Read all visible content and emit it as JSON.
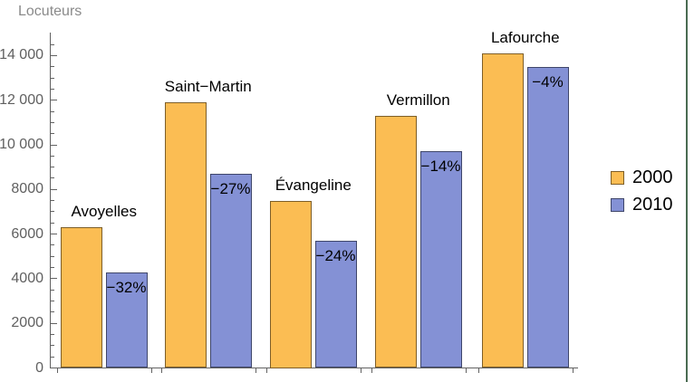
{
  "chart_data": {
    "type": "bar",
    "title": "",
    "ylabel": "Locuteurs",
    "xlabel": "",
    "categories": [
      "Avoyelles",
      "Saint−Martin",
      "Évangeline",
      "Vermillon",
      "Lafourche"
    ],
    "series": [
      {
        "name": "2000",
        "values": [
          6300,
          11900,
          7500,
          11300,
          14100
        ],
        "color": "#fbbd53",
        "edge_color": "#7d5e28"
      },
      {
        "name": "2010",
        "values": [
          4300,
          8700,
          5700,
          9700,
          13500
        ],
        "color": "#8491d5",
        "edge_color": "#3f466a"
      }
    ],
    "change_labels": [
      "−32%",
      "−27%",
      "−24%",
      "−14%",
      "−4%"
    ],
    "y_ticks": [
      {
        "value": 0,
        "label": "0"
      },
      {
        "value": 2000,
        "label": "2000"
      },
      {
        "value": 4000,
        "label": "4000"
      },
      {
        "value": 6000,
        "label": "6000"
      },
      {
        "value": 8000,
        "label": "8000"
      },
      {
        "value": 10000,
        "label": "10 000"
      },
      {
        "value": 12000,
        "label": "12 000"
      },
      {
        "value": 14000,
        "label": "14 000"
      }
    ],
    "y_minor_tick_step": 500,
    "ylim": [
      0,
      14950
    ],
    "grid": false,
    "legend": {
      "position": "right",
      "entries": [
        "2000",
        "2010"
      ]
    },
    "axis_color": "#626262",
    "tick_label_color": "#606060",
    "bar_label_color": "#000000"
  },
  "frame": {
    "right_edge_color": "#4a6b52"
  }
}
